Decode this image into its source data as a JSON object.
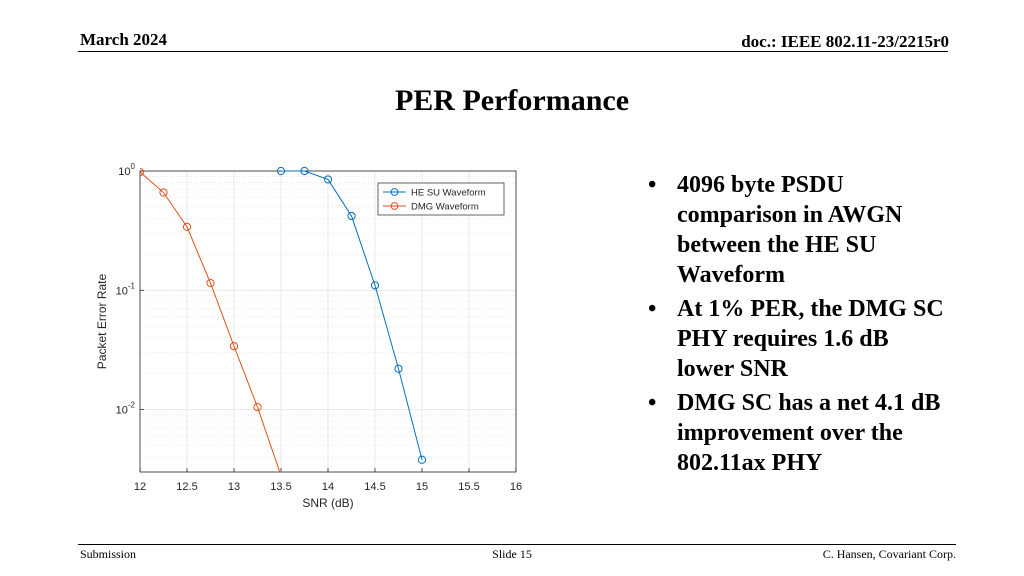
{
  "header": {
    "date": "March 2024",
    "doc": "doc.: IEEE 802.11-23/2215r0"
  },
  "title": "PER Performance",
  "bullets": [
    "4096 byte PSDU comparison in AWGN between the HE SU Waveform",
    "At 1% PER, the DMG SC PHY requires 1.6 dB lower SNR",
    "DMG SC has a net 4.1 dB improvement over the 802.11ax PHY"
  ],
  "footer": {
    "left": "Submission",
    "center": "Slide 15",
    "right": "C. Hansen, Covariant Corp."
  },
  "colors": {
    "he": "#0072BD",
    "dmg": "#D95319"
  },
  "chart_data": {
    "type": "line",
    "xlabel": "SNR (dB)",
    "ylabel": "Packet Error Rate",
    "xlim": [
      12,
      16
    ],
    "ylim": [
      0.003,
      1
    ],
    "yscale": "log",
    "grid": true,
    "legend": "top-right",
    "x_ticks": [
      12,
      12.5,
      13,
      13.5,
      14,
      14.5,
      15,
      15.5,
      16
    ],
    "x_tick_labels": [
      "12",
      "12.5",
      "13",
      "13.5",
      "14",
      "14.5",
      "15",
      "15.5",
      "16"
    ],
    "y_ticks": [
      {
        "base": "10",
        "exp": "0",
        "value": 1
      },
      {
        "base": "10",
        "exp": "-1",
        "value": 0.1
      },
      {
        "base": "10",
        "exp": "-2",
        "value": 0.01
      }
    ],
    "series": [
      {
        "name": "HE SU Waveform",
        "x": [
          13.5,
          13.75,
          14,
          14.25,
          14.5,
          14.75,
          15
        ],
        "y": [
          1,
          1,
          0.85,
          0.42,
          0.11,
          0.022,
          0.0038
        ]
      },
      {
        "name": "DMG Waveform",
        "x": [
          12,
          12.25,
          12.5,
          12.75,
          13,
          13.25,
          13.5
        ],
        "y": [
          0.98,
          0.66,
          0.34,
          0.115,
          0.034,
          0.0105,
          0.0028
        ]
      }
    ]
  }
}
